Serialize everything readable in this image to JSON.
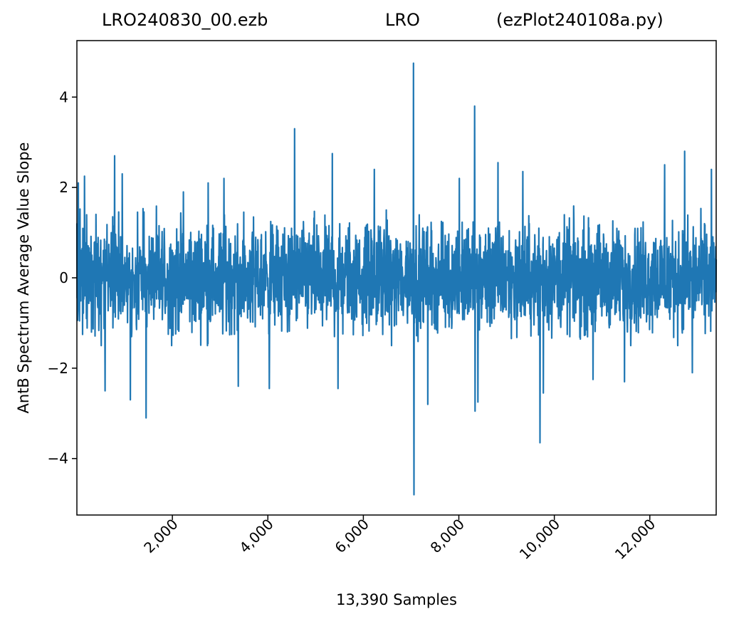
{
  "chart_data": {
    "type": "line",
    "title_parts": [
      "LRO240830_00.ezb",
      "LRO",
      "(ezPlot240108a.py)"
    ],
    "xlabel": "13,390 Samples",
    "ylabel": "AntB Spectrum Average Value Slope",
    "xlim": [
      0,
      13390
    ],
    "ylim": [
      -5.25,
      5.25
    ],
    "xticks": [
      2000,
      4000,
      6000,
      8000,
      10000,
      12000
    ],
    "xtick_labels": [
      "2,000",
      "4,000",
      "6,000",
      "8,000",
      "10,000",
      "12,000"
    ],
    "yticks": [
      4,
      2,
      0,
      -2,
      -4
    ],
    "ytick_labels": [
      "4",
      "2",
      "0",
      "−2",
      "−4"
    ],
    "n_samples": 13390,
    "noise_band": [
      -1.5,
      1.7
    ],
    "spikes": [
      {
        "x": 30,
        "y": 2.1
      },
      {
        "x": 160,
        "y": 2.25
      },
      {
        "x": 590,
        "y": -2.5
      },
      {
        "x": 790,
        "y": 2.7
      },
      {
        "x": 950,
        "y": 2.3
      },
      {
        "x": 1120,
        "y": -2.7
      },
      {
        "x": 1450,
        "y": -3.1
      },
      {
        "x": 2230,
        "y": 1.9
      },
      {
        "x": 2750,
        "y": 2.1
      },
      {
        "x": 3080,
        "y": 2.2
      },
      {
        "x": 3380,
        "y": -2.4
      },
      {
        "x": 4030,
        "y": -2.45
      },
      {
        "x": 4560,
        "y": 3.3
      },
      {
        "x": 5350,
        "y": 2.75
      },
      {
        "x": 5470,
        "y": -2.45
      },
      {
        "x": 6230,
        "y": 2.4
      },
      {
        "x": 7050,
        "y": 4.75
      },
      {
        "x": 7060,
        "y": -4.8
      },
      {
        "x": 7350,
        "y": -2.8
      },
      {
        "x": 8010,
        "y": 2.2
      },
      {
        "x": 8330,
        "y": 3.8
      },
      {
        "x": 8340,
        "y": -2.95
      },
      {
        "x": 8400,
        "y": -2.75
      },
      {
        "x": 8820,
        "y": 2.55
      },
      {
        "x": 9340,
        "y": 2.35
      },
      {
        "x": 9700,
        "y": -3.65
      },
      {
        "x": 9770,
        "y": -2.55
      },
      {
        "x": 10810,
        "y": -2.25
      },
      {
        "x": 11470,
        "y": -2.3
      },
      {
        "x": 12310,
        "y": 2.5
      },
      {
        "x": 12730,
        "y": 2.8
      },
      {
        "x": 12890,
        "y": -2.1
      },
      {
        "x": 13290,
        "y": 2.4
      }
    ],
    "series": [
      {
        "color": "#1f77b4"
      }
    ],
    "grid": false
  }
}
